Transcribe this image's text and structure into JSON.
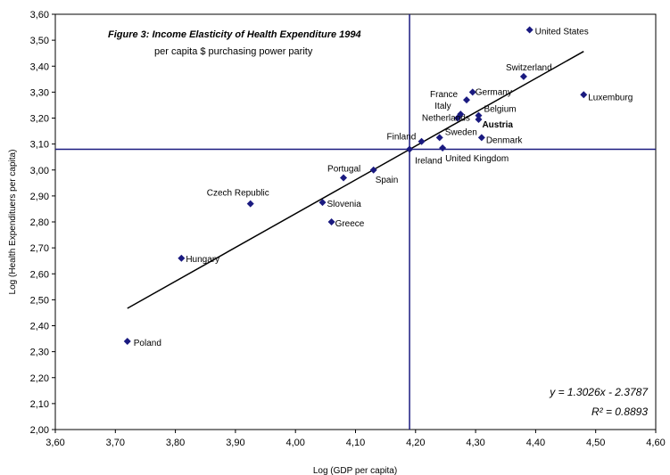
{
  "chart_data": {
    "type": "scatter",
    "title": "Figure 3: Income Elasticity of Health Expenditure 1994",
    "subtitle": "per capita $ purchasing power parity",
    "xlabel": "Log (GDP per capita)",
    "ylabel": "Log (Health Expendituers per capita)",
    "xlim": [
      3.6,
      4.6
    ],
    "ylim": [
      2.0,
      3.6
    ],
    "x_ticks": [
      "3,60",
      "3,70",
      "3,80",
      "3,90",
      "4,00",
      "4,10",
      "4,20",
      "4,30",
      "4,40",
      "4,50",
      "4,60"
    ],
    "y_ticks": [
      "2,00",
      "2,10",
      "2,20",
      "2,30",
      "2,40",
      "2,50",
      "2,60",
      "2,70",
      "2,80",
      "2,90",
      "3,00",
      "3,10",
      "3,20",
      "3,30",
      "3,40",
      "3,50",
      "3,60"
    ],
    "grid": false,
    "marker_color": "#1a1a80",
    "line_color": "#1a1a80",
    "points": [
      {
        "label": "United States",
        "x": 4.39,
        "y": 3.54
      },
      {
        "label": "Switzerland",
        "x": 4.38,
        "y": 3.36
      },
      {
        "label": "Luxemburg",
        "x": 4.48,
        "y": 3.29
      },
      {
        "label": "Germany",
        "x": 4.295,
        "y": 3.3
      },
      {
        "label": "France",
        "x": 4.285,
        "y": 3.27
      },
      {
        "label": "Italy",
        "x": 4.275,
        "y": 3.215
      },
      {
        "label": "Belgium",
        "x": 4.305,
        "y": 3.21
      },
      {
        "label": "Austria",
        "x": 4.305,
        "y": 3.195,
        "bold": true
      },
      {
        "label": "Netherlands",
        "x": 4.27,
        "y": 3.2
      },
      {
        "label": "Sweden",
        "x": 4.24,
        "y": 3.125
      },
      {
        "label": "Denmark",
        "x": 4.31,
        "y": 3.125
      },
      {
        "label": "Finland",
        "x": 4.21,
        "y": 3.11
      },
      {
        "label": "Ireland",
        "x": 4.19,
        "y": 3.08
      },
      {
        "label": "United Kingdom",
        "x": 4.245,
        "y": 3.085
      },
      {
        "label": "Spain",
        "x": 4.13,
        "y": 3.0
      },
      {
        "label": "Portugal",
        "x": 4.08,
        "y": 2.97
      },
      {
        "label": "Czech Republic",
        "x": 3.925,
        "y": 2.87
      },
      {
        "label": "Slovenia",
        "x": 4.045,
        "y": 2.875
      },
      {
        "label": "Greece",
        "x": 4.06,
        "y": 2.8
      },
      {
        "label": "Hungary",
        "x": 3.81,
        "y": 2.66
      },
      {
        "label": "Poland",
        "x": 3.72,
        "y": 2.34
      }
    ],
    "trendline": {
      "slope": 1.3026,
      "intercept": -2.3787,
      "x_range": [
        3.72,
        4.48
      ]
    },
    "crosshair": {
      "x": 4.19,
      "y": 3.08
    },
    "equation_label": "y = 1.3026x - 2.3787",
    "r2_label": "R² = 0.8893"
  }
}
